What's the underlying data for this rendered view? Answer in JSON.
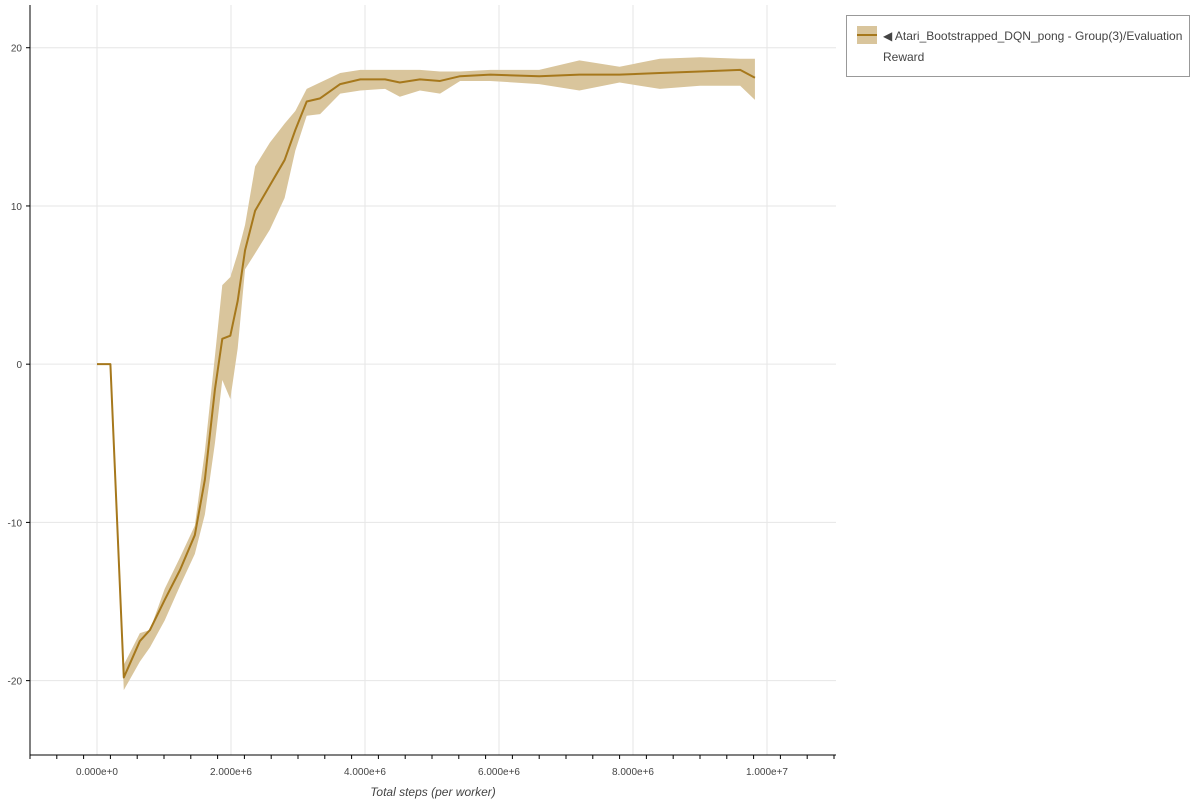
{
  "chart_data": {
    "type": "line",
    "title": "",
    "xlabel": "Total steps (per worker)",
    "ylabel": "",
    "xlim": [
      -1000000,
      11030000
    ],
    "ylim": [
      -24.7,
      22.7
    ],
    "xticks": [
      0,
      2000000,
      4000000,
      6000000,
      8000000,
      10000000
    ],
    "xtick_labels": [
      "0.000e+0",
      "2.000e+6",
      "4.000e+6",
      "6.000e+6",
      "8.000e+6",
      "1.000e+7"
    ],
    "yticks": [
      -20,
      -10,
      0,
      10,
      20
    ],
    "ytick_labels": [
      "-20",
      "-10",
      "0",
      "10",
      "20"
    ],
    "grid": true,
    "legend_placement": "outside-top-right",
    "colors": {
      "line": "#a6781c",
      "band": "#d9c59c"
    },
    "series": [
      {
        "name": "◀ Atari_Bootstrapped_DQN_pong - Group(3)/Evaluation Reward",
        "x": [
          0,
          200000,
          400000,
          640000,
          790000,
          1010000,
          1240000,
          1460000,
          1610000,
          1760000,
          1870000,
          1990000,
          2100000,
          2210000,
          2360000,
          2580000,
          2800000,
          2960000,
          3130000,
          3330000,
          3630000,
          3930000,
          4300000,
          4520000,
          4820000,
          5120000,
          5420000,
          5870000,
          6600000,
          7200000,
          7800000,
          8400000,
          9000000,
          9600000,
          9820000
        ],
        "y": [
          0,
          0,
          -19.8,
          -17.5,
          -16.8,
          -14.9,
          -13,
          -10.8,
          -7.3,
          -1.6,
          1.6,
          1.8,
          4,
          7.2,
          9.7,
          11.3,
          12.9,
          14.8,
          16.6,
          16.8,
          17.7,
          18,
          18,
          17.8,
          18,
          17.9,
          18.2,
          18.3,
          18.2,
          18.3,
          18.3,
          18.4,
          18.5,
          18.6,
          18.1
        ],
        "lower": [
          0,
          0,
          -20.6,
          -18.8,
          -17.9,
          -16.2,
          -14,
          -12,
          -9.5,
          -5,
          -1,
          -2.2,
          1,
          6,
          7,
          8.5,
          10.5,
          13.5,
          15.7,
          15.8,
          17.1,
          17.3,
          17.4,
          16.9,
          17.3,
          17.1,
          17.9,
          17.9,
          17.7,
          17.3,
          17.8,
          17.4,
          17.6,
          17.6,
          16.7
        ],
        "upper": [
          0,
          0,
          -19,
          -17,
          -16.8,
          -14.2,
          -12.2,
          -10.2,
          -5.5,
          0.5,
          5,
          5.5,
          7,
          8.8,
          12.5,
          14,
          15.2,
          16,
          17.4,
          17.8,
          18.4,
          18.6,
          18.6,
          18.6,
          18.6,
          18.5,
          18.5,
          18.6,
          18.6,
          19.2,
          18.8,
          19.3,
          19.4,
          19.3,
          19.3
        ]
      }
    ]
  }
}
